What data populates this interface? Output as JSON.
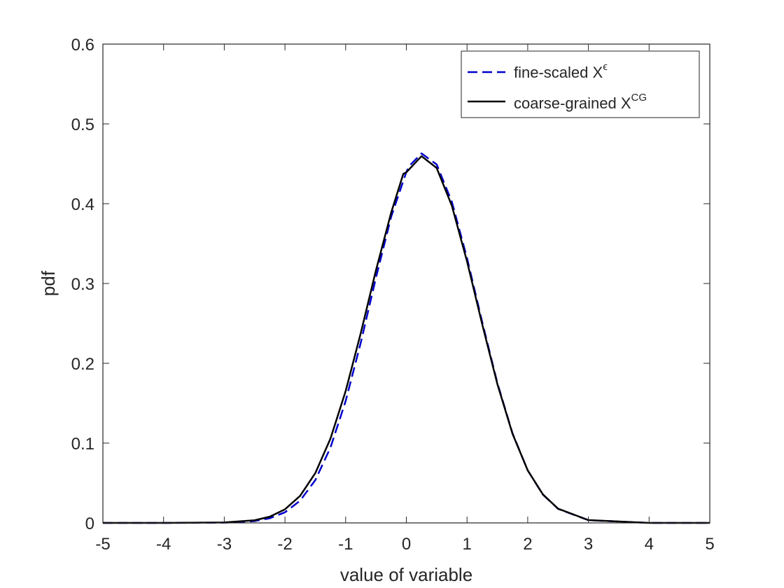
{
  "chart_data": {
    "type": "line",
    "title": "",
    "xlabel": "value of variable",
    "ylabel": "pdf",
    "xlim": [
      -5,
      5
    ],
    "ylim": [
      0,
      0.6
    ],
    "xticks": [
      -5,
      -4,
      -3,
      -2,
      -1,
      0,
      1,
      2,
      3,
      4,
      5
    ],
    "yticks": [
      0,
      0.1,
      0.2,
      0.3,
      0.4,
      0.5,
      0.6
    ],
    "xtick_labels": [
      "-5",
      "-4",
      "-3",
      "-2",
      "-1",
      "0",
      "1",
      "2",
      "3",
      "4",
      "5"
    ],
    "ytick_labels": [
      "0",
      "0.1",
      "0.2",
      "0.3",
      "0.4",
      "0.5",
      "0.6"
    ],
    "grid": false,
    "box": true,
    "legend": {
      "position": "top-right",
      "entries": [
        {
          "base": "fine-scaled X",
          "sup": "ϵ"
        },
        {
          "base": "coarse-grained X",
          "sup": "CG"
        }
      ]
    },
    "series": [
      {
        "name": "fine-scaled Xϵ",
        "color": "#0000cc",
        "style": "dashed",
        "x": [
          -5,
          -4,
          -3,
          -2.5,
          -2.25,
          -2,
          -1.75,
          -1.5,
          -1.25,
          -1,
          -0.75,
          -0.5,
          -0.25,
          0,
          0.05,
          0.25,
          0.5,
          0.75,
          1,
          1.25,
          1.5,
          1.75,
          2,
          2.25,
          2.5,
          3,
          4,
          5
        ],
        "y": [
          0,
          0,
          0.0003,
          0.0023,
          0.0058,
          0.0133,
          0.0279,
          0.0536,
          0.0945,
          0.1527,
          0.2262,
          0.3075,
          0.3837,
          0.4398,
          0.4474,
          0.463,
          0.4491,
          0.4023,
          0.3318,
          0.2516,
          0.1752,
          0.1121,
          0.0658,
          0.0355,
          0.0176,
          0.0034,
          0,
          0
        ]
      },
      {
        "name": "coarse-grained XCG",
        "color": "#000000",
        "style": "solid",
        "x": [
          -5,
          -4,
          -3,
          -2.5,
          -2.25,
          -2,
          -1.75,
          -1.5,
          -1.25,
          -1,
          -0.75,
          -0.5,
          -0.25,
          -0.05,
          0,
          0.25,
          0.5,
          0.75,
          1,
          1.25,
          1.5,
          1.75,
          2,
          2.25,
          2.5,
          3,
          4,
          5
        ],
        "y": [
          0,
          0,
          0.0005,
          0.0033,
          0.0078,
          0.017,
          0.0339,
          0.0624,
          0.1057,
          0.1652,
          0.2381,
          0.3167,
          0.3889,
          0.4374,
          0.4393,
          0.4596,
          0.4447,
          0.3974,
          0.3277,
          0.2489,
          0.1739,
          0.1115,
          0.0658,
          0.0357,
          0.0178,
          0.0035,
          0,
          0
        ]
      }
    ]
  }
}
